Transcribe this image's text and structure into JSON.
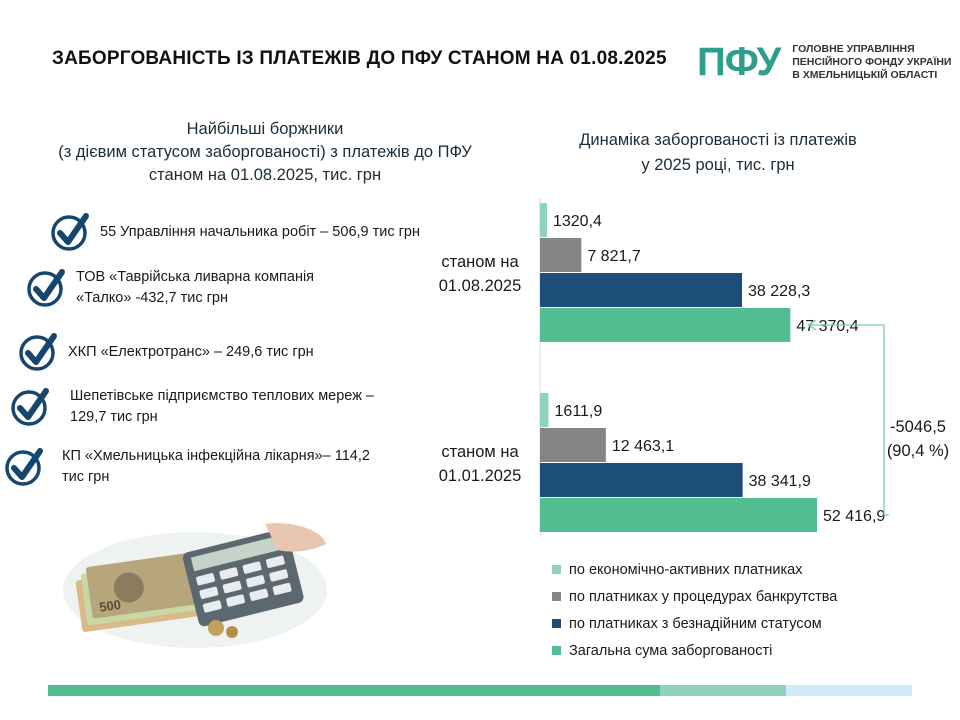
{
  "header": {
    "title": "ЗАБОРГОВАНІСТЬ ІЗ ПЛАТЕЖІВ ДО ПФУ СТАНОМ НА 01.08.2025",
    "logo_mark": "ПФУ",
    "logo_lines": [
      "ГОЛОВНЕ УПРАВЛІННЯ",
      "ПЕНСІЙНОГО ФОНДУ УКРАЇНИ",
      "В ХМЕЛЬНИЦЬКІЙ ОБЛАСТІ"
    ]
  },
  "debtors": {
    "heading_lines": [
      "Найбільші боржники",
      "(з дієвим статусом заборгованості) з платежів до ПФУ",
      "станом на 01.08.2025, тис. грн"
    ],
    "items": [
      {
        "lines": [
          "55 Управління начальника робіт – 506,9 тис грн"
        ]
      },
      {
        "lines": [
          "ТОВ «Таврійська ливарна компанія",
          "«Талко» -432,7 тис грн"
        ]
      },
      {
        "lines": [
          "ХКП «Електротранс» – 249,6 тис грн"
        ]
      },
      {
        "lines": [
          "Шепетівське підприємство теплових мереж –",
          "129,7 тис грн"
        ]
      },
      {
        "lines": [
          "КП «Хмельницька інфекційна лікарня»– 114,2",
          "тис грн"
        ]
      }
    ]
  },
  "chart_title_lines": [
    "Динаміка заборгованості із платежів",
    "у 2025 році, тис. грн"
  ],
  "chart_data": {
    "type": "bar",
    "orientation": "horizontal",
    "groups": [
      {
        "label_lines": [
          "станом на",
          "01.08.2025"
        ],
        "values": [
          1320.4,
          7821.7,
          38228.3,
          47370.4
        ],
        "value_labels": [
          "1320,4",
          "7 821,7",
          "38 228,3",
          "47 370,4"
        ]
      },
      {
        "label_lines": [
          "станом на",
          "01.01.2025"
        ],
        "values": [
          1611.9,
          12463.1,
          38341.9,
          52416.9
        ],
        "value_labels": [
          "1611,9",
          "12 463,1",
          "38 341,9",
          "52 416,9"
        ]
      }
    ],
    "series": [
      {
        "name": "по економічно-активних платниках",
        "color": "#8fd3b8"
      },
      {
        "name": "по платниках у процедурах банкрутства",
        "color": "#858585"
      },
      {
        "name": "по платниках з безнадійним статусом",
        "color": "#1d4e79"
      },
      {
        "name": "Загальна сума заборгованості",
        "color": "#52bd90"
      }
    ],
    "xlim": [
      0,
      52416.9
    ],
    "annotation": {
      "lines": [
        "-5046,5",
        "(90,4 %)"
      ]
    }
  },
  "colors": {
    "accent_green": "#52bd90",
    "logo_green": "#2d9e8a",
    "check_blue": "#16466e",
    "bar_segments": [
      "#52bd90",
      "#8fd3b8",
      "#cfe9f6"
    ]
  }
}
